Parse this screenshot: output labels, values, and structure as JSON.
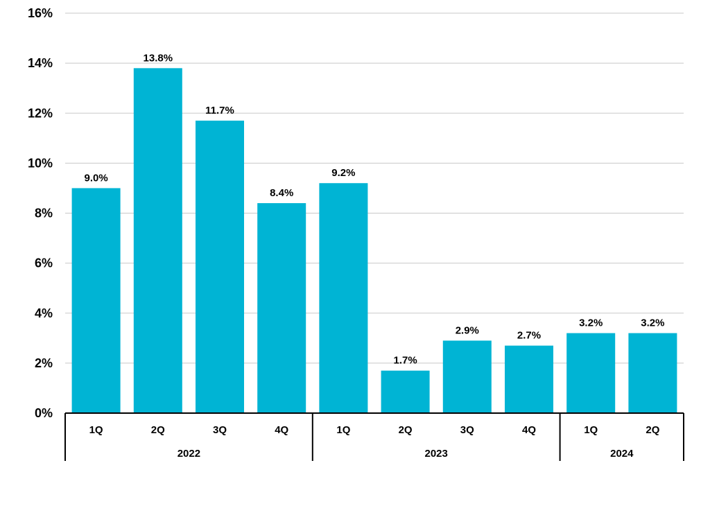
{
  "chart_data": {
    "type": "bar",
    "title": "",
    "xlabel": "",
    "ylabel": "",
    "ylim": [
      0,
      16
    ],
    "yticks": [
      "0%",
      "2%",
      "4%",
      "6%",
      "8%",
      "10%",
      "12%",
      "14%",
      "16%"
    ],
    "grid": true,
    "legend": "none",
    "bar_color": "#00B4D4",
    "categories": [
      "1Q",
      "2Q",
      "3Q",
      "4Q",
      "1Q",
      "2Q",
      "3Q",
      "4Q",
      "1Q",
      "2Q"
    ],
    "groups": [
      {
        "label": "2022",
        "count": 4
      },
      {
        "label": "2023",
        "count": 4
      },
      {
        "label": "2024",
        "count": 2
      }
    ],
    "values": [
      9.0,
      13.8,
      11.7,
      8.4,
      9.2,
      1.7,
      2.9,
      2.7,
      3.2,
      3.2
    ],
    "data_labels": [
      "9.0%",
      "13.8%",
      "11.7%",
      "8.4%",
      "9.2%",
      "1.7%",
      "2.9%",
      "2.7%",
      "3.2%",
      "3.2%"
    ]
  }
}
